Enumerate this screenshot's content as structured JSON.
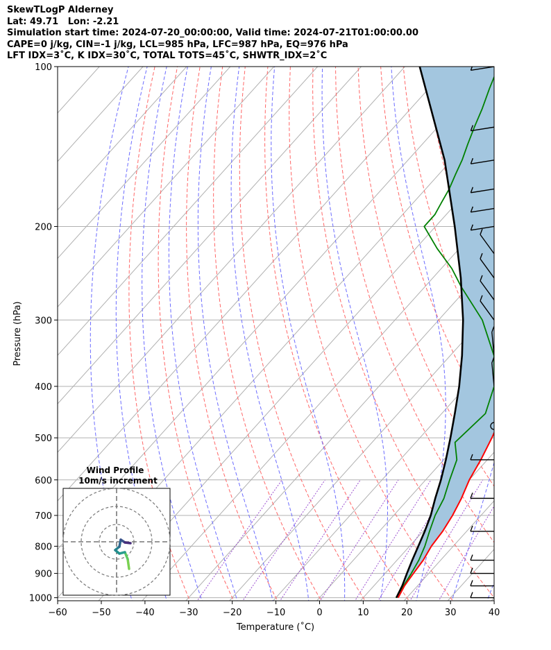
{
  "header": {
    "title": "SkewTLogP Alderney",
    "location": "Lat: 49.71   Lon: -2.21",
    "times": "Simulation start time: 2024-07-20_00:00:00, Valid time: 2024-07-21T01:00:00.00",
    "indices1": "CAPE=0 j/kg, CIN=-1 j/kg, LCL=985 hPa, LFC=987 hPa, EQ=976 hPa",
    "indices2": "LFT IDX=3˚C, K IDX=30˚C, TOTAL TOTS=45˚C, SHWTR_IDX=2˚C"
  },
  "chart_data": {
    "type": "line",
    "title": "SkewTLogP Alderney",
    "xlabel": "Temperature (˚C)",
    "ylabel": "Pressure (hPa)",
    "xlim": [
      -60,
      40
    ],
    "ylim": [
      1050,
      100
    ],
    "y_scale": "log",
    "x_ticks": [
      -60,
      -50,
      -40,
      -30,
      -20,
      -10,
      0,
      10,
      20,
      30,
      40
    ],
    "y_ticks": [
      100,
      200,
      300,
      400,
      500,
      600,
      700,
      800,
      900,
      1000
    ],
    "x_tick_labels": [
      "−60",
      "−50",
      "−40",
      "−30",
      "−20",
      "−10",
      "0",
      "10",
      "20",
      "30",
      "40"
    ],
    "y_tick_labels": [
      "100",
      "200",
      "300",
      "400",
      "500",
      "600",
      "700",
      "800",
      "900",
      "1000"
    ],
    "skew": true,
    "grid": true,
    "colors": {
      "temperature": "#ff0000",
      "dewpoint": "#008000",
      "parcel": "#000000",
      "shade": "#a3c6df",
      "dry_adiabat": "#ff6666",
      "moist_adiabat": "#6b6bff",
      "mixing_ratio": "#9b4fd0"
    },
    "series": [
      {
        "key": "temperature",
        "pressure": [
          1000,
          950,
          900,
          850,
          800,
          750,
          700,
          650,
          600,
          550,
          500,
          450,
          400,
          350,
          310,
          300,
          290,
          280,
          270,
          260,
          250,
          240,
          230,
          220,
          210,
          200,
          190,
          180,
          170,
          160,
          150,
          140,
          130,
          120,
          110,
          100
        ],
        "values": [
          18,
          17,
          16.5,
          16,
          15,
          14.5,
          13.5,
          12,
          10,
          8.5,
          6.5,
          4,
          0.3,
          -3.6,
          -7.1,
          -7.6,
          -8,
          -7.2,
          -8.2,
          -8.6,
          -8.6,
          -8.1,
          -7.6,
          -7.6,
          -8.1,
          -8.6,
          -9.1,
          -10.1,
          -11.1,
          -12.6,
          -14.3,
          -15.6,
          -17.1,
          -18.7,
          -21.1,
          -23.1
        ]
      },
      {
        "key": "dewpoint",
        "pressure": [
          1000,
          950,
          900,
          850,
          800,
          750,
          700,
          650,
          600,
          550,
          510,
          450,
          400,
          350,
          300,
          260,
          240,
          220,
          200,
          190,
          180,
          170,
          160,
          150,
          140,
          130,
          120,
          110,
          100
        ],
        "values": [
          17.5,
          16.8,
          16,
          15,
          13.5,
          11.5,
          9.5,
          8,
          5.5,
          3,
          -1,
          0,
          -3.6,
          -10,
          -20,
          -31.6,
          -37.6,
          -45.1,
          -52.6,
          -52.6,
          -53.6,
          -54.6,
          -56.1,
          -57.6,
          -59.6,
          -61.6,
          -63.6,
          -66.1,
          -68.6
        ]
      },
      {
        "key": "parcel",
        "pressure": [
          1000,
          950,
          900,
          850,
          800,
          750,
          700,
          650,
          600,
          550,
          500,
          450,
          400,
          350,
          300,
          250,
          200,
          150,
          100
        ],
        "values": [
          17.6,
          16.5,
          15,
          13.5,
          12,
          10.4,
          8.5,
          6,
          3.5,
          0.5,
          -3,
          -7,
          -11.6,
          -17.3,
          -24.4,
          -33.6,
          -45.6,
          -61.6,
          -86.6
        ]
      }
    ],
    "annotations": [
      "Wind Profile",
      "10m/s increment"
    ],
    "hodograph_title": "Wind Profile",
    "hodograph_subtitle": "10m/s increment",
    "wind_pressures": [
      100,
      130,
      150,
      170,
      185,
      200,
      225,
      250,
      275,
      300,
      350,
      400,
      475,
      550,
      650,
      750,
      850,
      900,
      950,
      1000
    ]
  }
}
